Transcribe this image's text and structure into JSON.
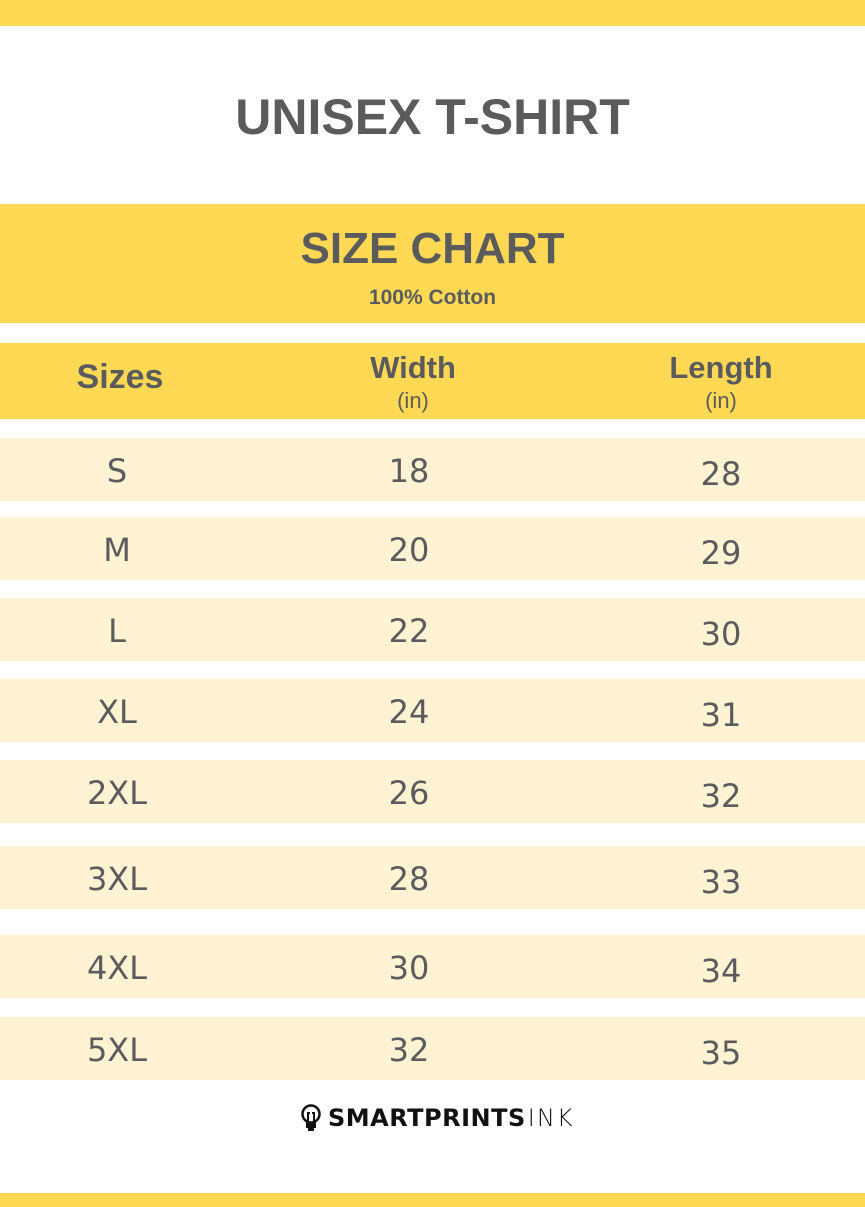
{
  "title": "UNISEX T-SHIRT",
  "banner": {
    "heading": "SIZE CHART",
    "subheading": "100% Cotton"
  },
  "table": {
    "headers": [
      {
        "label": "Sizes",
        "unit": ""
      },
      {
        "label": "Width",
        "unit": "(in)"
      },
      {
        "label": "Length",
        "unit": "(in)"
      }
    ],
    "rows": [
      {
        "size": "S",
        "width": "18",
        "length": "28"
      },
      {
        "size": "M",
        "width": "20",
        "length": "29"
      },
      {
        "size": "L",
        "width": "22",
        "length": "30"
      },
      {
        "size": "XL",
        "width": "24",
        "length": "31"
      },
      {
        "size": "2XL",
        "width": "26",
        "length": "32"
      },
      {
        "size": "3XL",
        "width": "28",
        "length": "33"
      },
      {
        "size": "4XL",
        "width": "30",
        "length": "34"
      },
      {
        "size": "5XL",
        "width": "32",
        "length": "35"
      }
    ]
  },
  "brand": {
    "bold": "SMARTPRINTS",
    "light": "INK",
    "icon": "lightbulb-icon"
  },
  "colors": {
    "accent": "#FFD954",
    "row": "#FFF3D4",
    "text": "#5B5B5D"
  }
}
